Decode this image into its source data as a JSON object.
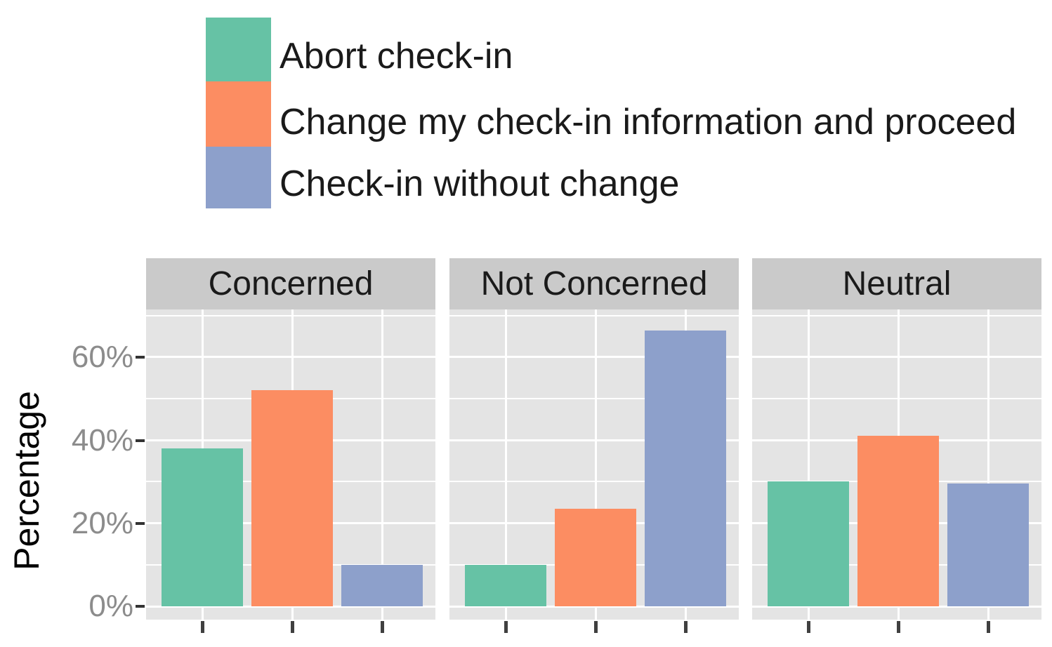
{
  "chart_data": {
    "type": "bar",
    "title": "",
    "ylabel": "Percentage",
    "facet_titles": [
      "Concerned",
      "Not Concerned",
      "Neutral"
    ],
    "series": [
      {
        "name": "Abort check-in",
        "color": "#66C2A5",
        "values_by_facet": [
          38,
          10,
          30
        ]
      },
      {
        "name": "Change my check-in information and proceed",
        "color": "#FC8D62",
        "values_by_facet": [
          52,
          23.5,
          41
        ]
      },
      {
        "name": "Check-in without change",
        "color": "#8DA0CB",
        "values_by_facet": [
          10,
          66.5,
          29.5
        ]
      }
    ],
    "y_major_ticks": [
      {
        "value": 0,
        "label": "0%"
      },
      {
        "value": 20,
        "label": "20%"
      },
      {
        "value": 40,
        "label": "40%"
      },
      {
        "value": 60,
        "label": "60%"
      }
    ],
    "y_minor_ticks": [
      10,
      30,
      50,
      70
    ],
    "ylim": [
      -3,
      71.5
    ],
    "x_tick_labels": [],
    "grid": "white gridlines on gray panel",
    "legend_position": "top-left",
    "panel_background": "#E4E4E4",
    "strip_background": "#CACACA",
    "axis_text_color": "#8c8c8c"
  }
}
